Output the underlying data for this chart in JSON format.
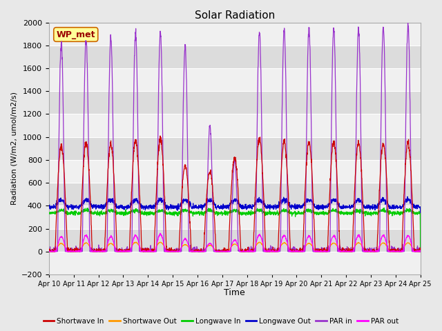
{
  "title": "Solar Radiation",
  "ylabel": "Radiation (W/m2, umol/m2/s)",
  "xlabel": "Time",
  "ylim": [
    -200,
    2000
  ],
  "yticks": [
    -200,
    0,
    200,
    400,
    600,
    800,
    1000,
    1200,
    1400,
    1600,
    1800,
    2000
  ],
  "num_days": 15,
  "colors": {
    "shortwave_in": "#cc0000",
    "shortwave_out": "#ff9900",
    "longwave_in": "#00cc00",
    "longwave_out": "#0000cc",
    "par_in": "#9933cc",
    "par_out": "#ff00ff"
  },
  "legend_label": "WP_met",
  "background_color": "#e8e8e8",
  "plot_bg_light": "#f0f0f0",
  "plot_bg_dark": "#dcdcdc",
  "grid_color": "#ffffff"
}
